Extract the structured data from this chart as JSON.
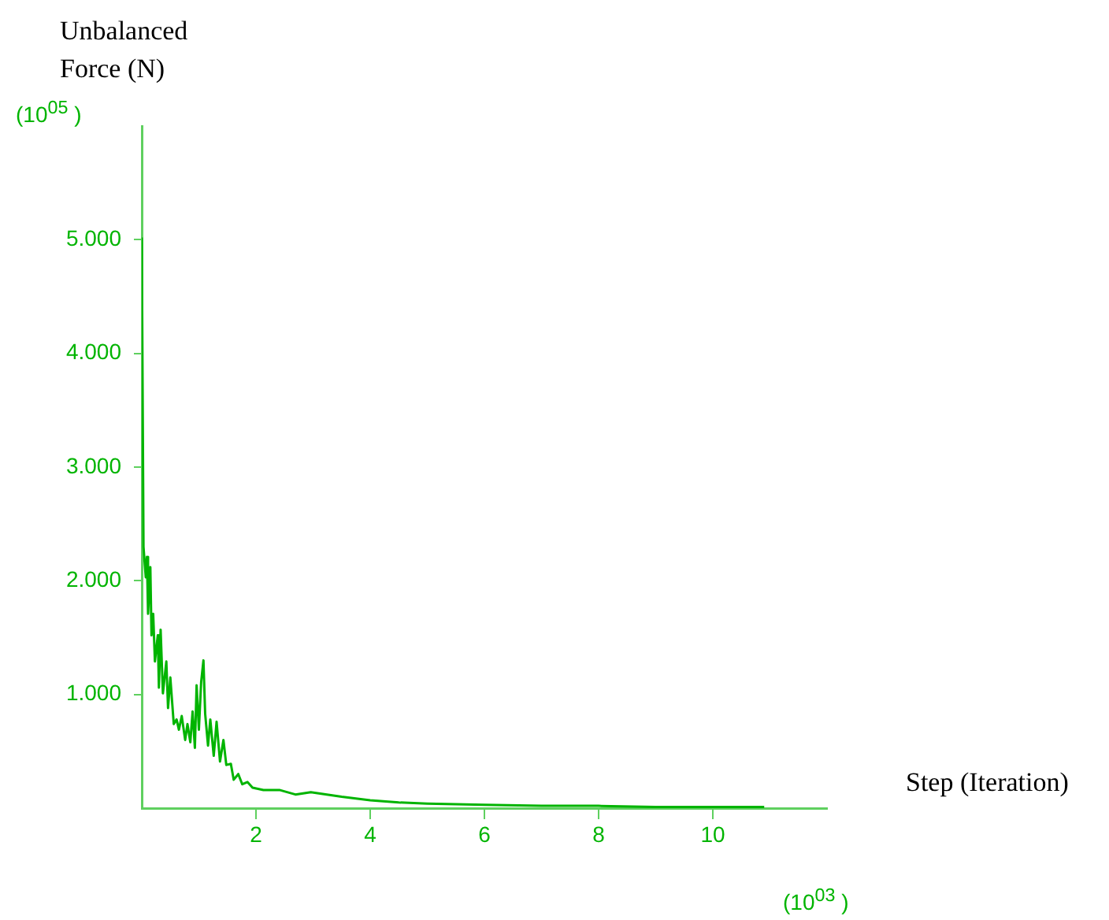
{
  "chart_data": {
    "type": "line",
    "xlabel": "Step (Iteration)",
    "ylabel": "Unbalanced\nForce (N)",
    "annotations": [
      "(10$^{05}$ )",
      "(10$^{03}$ )"
    ],
    "x": [
      0,
      0.03,
      0.07,
      0.09,
      0.11,
      0.15,
      0.17,
      0.2,
      0.23,
      0.28,
      0.3,
      0.33,
      0.37,
      0.43,
      0.46,
      0.5,
      0.56,
      0.61,
      0.65,
      0.7,
      0.76,
      0.8,
      0.85,
      0.89,
      0.93,
      0.96,
      1.0,
      1.04,
      1.08,
      1.11,
      1.16,
      1.2,
      1.26,
      1.31,
      1.37,
      1.43,
      1.48,
      1.56,
      1.61,
      1.69,
      1.76,
      1.85,
      1.94,
      2.13,
      2.41,
      2.69,
      2.96,
      3.5,
      4.0,
      4.5,
      5.0,
      6.0,
      7.0,
      8.0,
      9.0,
      10.0,
      10.9
    ],
    "series": [
      {
        "color": "#00b400",
        "values": [
          5.02,
          2.3,
          2.03,
          2.21,
          1.71,
          2.12,
          1.52,
          1.71,
          1.29,
          1.52,
          1.06,
          1.57,
          1.01,
          1.29,
          0.88,
          1.15,
          0.74,
          0.78,
          0.69,
          0.81,
          0.6,
          0.74,
          0.58,
          0.85,
          0.53,
          1.08,
          0.69,
          1.11,
          1.3,
          0.83,
          0.55,
          0.78,
          0.46,
          0.76,
          0.41,
          0.6,
          0.38,
          0.39,
          0.25,
          0.3,
          0.21,
          0.23,
          0.18,
          0.16,
          0.16,
          0.12,
          0.14,
          0.1,
          0.07,
          0.05,
          0.04,
          0.03,
          0.02,
          0.02,
          0.01,
          0.01,
          0.01
        ]
      }
    ],
    "xlim": [
      0,
      12
    ],
    "xticks": [
      2,
      4,
      6,
      8,
      10
    ],
    "ylim": [
      0,
      6
    ],
    "yticks": [
      {
        "value": 1,
        "label": "1.000"
      },
      {
        "value": 2,
        "label": "2.000"
      },
      {
        "value": 3,
        "label": "3.000"
      },
      {
        "value": 4,
        "label": "4.000"
      },
      {
        "value": 5,
        "label": "5.000"
      }
    ],
    "grid": false,
    "legend": false,
    "marker": "none",
    "line_style": "solid"
  }
}
